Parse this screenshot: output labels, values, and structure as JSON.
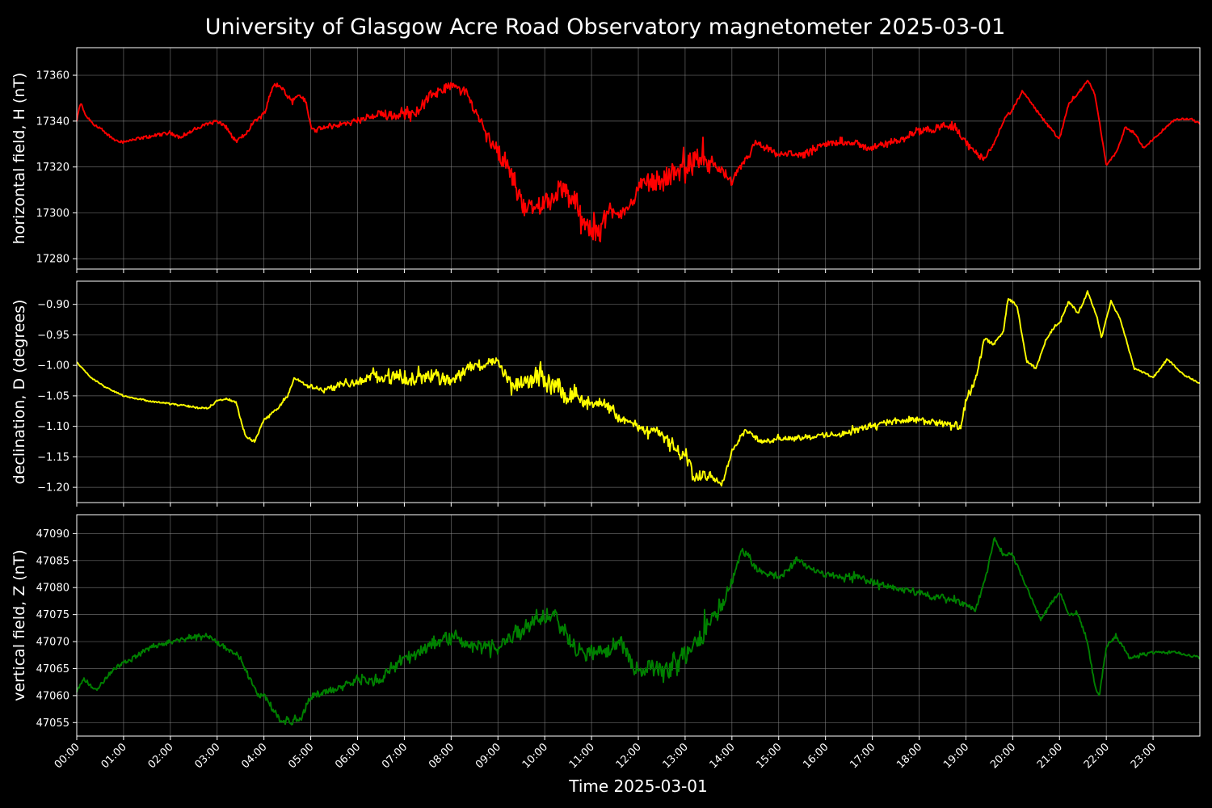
{
  "chart_data": {
    "type": "line",
    "title": "University of Glasgow Acre Road Observatory magnetometer 2025-03-01",
    "xlabel": "Time 2025-03-01",
    "x_ticks": [
      "00:00",
      "01:00",
      "02:00",
      "03:00",
      "04:00",
      "05:00",
      "06:00",
      "07:00",
      "08:00",
      "09:00",
      "10:00",
      "11:00",
      "12:00",
      "13:00",
      "14:00",
      "15:00",
      "16:00",
      "17:00",
      "18:00",
      "19:00",
      "20:00",
      "21:00",
      "22:00",
      "23:00"
    ],
    "xlim_hours": [
      0,
      24
    ],
    "grid": true,
    "panels": [
      {
        "name": "H",
        "ylabel": "horizontal field, H (nT)",
        "color": "#ff0000",
        "ylim": [
          17275.5,
          17372
        ],
        "yticks": [
          17280,
          17300,
          17320,
          17340,
          17360
        ],
        "ytick_labels": [
          "17280",
          "17300",
          "17320",
          "17340",
          "17360"
        ],
        "noise": [
          [
            0,
            0.5
          ],
          [
            6,
            1.0
          ],
          [
            7,
            2.5
          ],
          [
            8.5,
            1.5
          ],
          [
            9.2,
            3.5
          ],
          [
            11,
            4.5
          ],
          [
            12,
            2.5
          ],
          [
            13,
            5.5
          ],
          [
            14,
            1.5
          ],
          [
            15,
            1.2
          ],
          [
            18,
            1.5
          ],
          [
            19,
            2.0
          ],
          [
            19.7,
            0.6
          ],
          [
            24,
            0.4
          ]
        ],
        "series": [
          {
            "name": "H",
            "x": [
              0,
              0.08,
              0.2,
              0.4,
              0.6,
              0.8,
              1.0,
              1.5,
              2.0,
              2.2,
              2.5,
              2.8,
              3.0,
              3.2,
              3.4,
              3.6,
              3.8,
              4.0,
              4.2,
              4.4,
              4.6,
              4.75,
              4.9,
              5.0,
              5.1,
              5.5,
              6.0,
              6.5,
              7.0,
              7.3,
              7.6,
              8.0,
              8.3,
              8.5,
              8.8,
              9.0,
              9.2,
              9.4,
              9.6,
              9.8,
              10.0,
              10.3,
              10.6,
              10.8,
              11.0,
              11.2,
              11.5,
              11.8,
              12.0,
              12.3,
              12.6,
              13.0,
              13.2,
              13.5,
              13.8,
              14.0,
              14.2,
              14.5,
              14.8,
              15.0,
              15.3,
              15.6,
              16.0,
              16.5,
              17.0,
              17.3,
              17.6,
              18.0,
              18.3,
              18.5,
              18.8,
              19.0,
              19.2,
              19.4,
              19.6,
              19.8,
              20.0,
              20.2,
              20.4,
              20.6,
              20.8,
              21.0,
              21.2,
              21.4,
              21.6,
              21.75,
              21.85,
              22.0,
              22.2,
              22.4,
              22.6,
              22.8,
              23.0,
              23.2,
              23.5,
              23.8,
              24.0
            ],
            "y": [
              17340,
              17348,
              17342,
              17338,
              17335,
              17332,
              17331,
              17333,
              17335,
              17333,
              17336,
              17339,
              17340,
              17337,
              17331,
              17334,
              17340,
              17343,
              17356,
              17354,
              17349,
              17352,
              17348,
              17338,
              17336,
              17338,
              17340,
              17343,
              17343,
              17345,
              17352,
              17355,
              17353,
              17345,
              17334,
              17326,
              17320,
              17310,
              17303,
              17300,
              17305,
              17310,
              17306,
              17298,
              17290,
              17295,
              17302,
              17300,
              17312,
              17314,
              17315,
              17320,
              17323,
              17322,
              17318,
              17313,
              17320,
              17330,
              17327,
              17325,
              17326,
              17325,
              17330,
              17331,
              17328,
              17330,
              17332,
              17336,
              17337,
              17338,
              17337,
              17331,
              17326,
              17324,
              17330,
              17340,
              17345,
              17353,
              17348,
              17342,
              17337,
              17332,
              17348,
              17352,
              17358,
              17352,
              17340,
              17321,
              17326,
              17337,
              17335,
              17328,
              17332,
              17336,
              17341,
              17341,
              17339
            ]
          }
        ]
      },
      {
        "name": "D",
        "ylabel": "declination, D (degrees)",
        "color": "#ffff00",
        "ylim": [
          -1.225,
          -0.862
        ],
        "yticks": [
          -1.2,
          -1.15,
          -1.1,
          -1.05,
          -1.0,
          -0.95,
          -0.9
        ],
        "ytick_labels": [
          "−1.20",
          "−1.15",
          "−1.10",
          "−1.05",
          "−1.00",
          "−0.95",
          "−0.90"
        ],
        "noise": [
          [
            0,
            0.0006
          ],
          [
            4.5,
            0.002
          ],
          [
            6,
            0.006
          ],
          [
            7,
            0.012
          ],
          [
            9,
            0.006
          ],
          [
            9.8,
            0.016
          ],
          [
            11.3,
            0.008
          ],
          [
            12,
            0.006
          ],
          [
            13,
            0.012
          ],
          [
            14,
            0.003
          ],
          [
            17,
            0.004
          ],
          [
            19,
            0.006
          ],
          [
            19.6,
            0.002
          ],
          [
            24,
            0.001
          ]
        ],
        "series": [
          {
            "name": "D",
            "x": [
              0,
              0.3,
              0.6,
              1.0,
              1.5,
              2.0,
              2.3,
              2.6,
              2.8,
              3.0,
              3.2,
              3.4,
              3.6,
              3.8,
              4.0,
              4.3,
              4.5,
              4.65,
              4.8,
              5.0,
              5.3,
              5.6,
              6.0,
              6.5,
              6.8,
              7.0,
              7.3,
              7.6,
              8.0,
              8.5,
              8.8,
              9.0,
              9.3,
              9.6,
              9.9,
              10.0,
              10.3,
              10.6,
              10.9,
              11.2,
              11.5,
              11.8,
              12.0,
              12.3,
              12.6,
              12.8,
              13.0,
              13.2,
              13.5,
              13.8,
              14.0,
              14.3,
              14.6,
              15.0,
              15.5,
              16.0,
              16.5,
              17.0,
              17.5,
              18.0,
              18.5,
              18.9,
              19.0,
              19.2,
              19.4,
              19.6,
              19.8,
              19.9,
              20.1,
              20.3,
              20.5,
              20.7,
              20.9,
              21.0,
              21.2,
              21.4,
              21.6,
              21.8,
              21.9,
              22.1,
              22.3,
              22.6,
              22.8,
              23.0,
              23.3,
              23.6,
              24.0
            ],
            "y": [
              -0.995,
              -1.02,
              -1.035,
              -1.05,
              -1.058,
              -1.063,
              -1.066,
              -1.07,
              -1.07,
              -1.058,
              -1.055,
              -1.06,
              -1.115,
              -1.125,
              -1.09,
              -1.07,
              -1.05,
              -1.02,
              -1.028,
              -1.035,
              -1.04,
              -1.032,
              -1.028,
              -1.015,
              -1.02,
              -1.025,
              -1.02,
              -1.012,
              -1.025,
              -1.0,
              -0.995,
              -0.995,
              -1.035,
              -1.03,
              -1.015,
              -1.02,
              -1.04,
              -1.045,
              -1.06,
              -1.065,
              -1.08,
              -1.095,
              -1.1,
              -1.105,
              -1.12,
              -1.14,
              -1.15,
              -1.185,
              -1.178,
              -1.19,
              -1.14,
              -1.105,
              -1.125,
              -1.12,
              -1.118,
              -1.115,
              -1.11,
              -1.098,
              -1.09,
              -1.09,
              -1.095,
              -1.102,
              -1.06,
              -1.025,
              -0.955,
              -0.965,
              -0.945,
              -0.89,
              -0.905,
              -0.995,
              -1.005,
              -0.96,
              -0.935,
              -0.93,
              -0.895,
              -0.915,
              -0.88,
              -0.92,
              -0.955,
              -0.895,
              -0.925,
              -1.005,
              -1.012,
              -1.02,
              -0.99,
              -1.012,
              -1.03
            ]
          }
        ]
      },
      {
        "name": "Z",
        "ylabel": "vertical field, Z (nT)",
        "color": "#008000",
        "ylim": [
          47052.5,
          47093.5
        ],
        "yticks": [
          47055,
          47060,
          47065,
          47070,
          47075,
          47080,
          47085,
          47090
        ],
        "ytick_labels": [
          "47055",
          "47060",
          "47065",
          "47070",
          "47075",
          "47080",
          "47085",
          "47090"
        ],
        "noise": [
          [
            0,
            0.3
          ],
          [
            6,
            0.6
          ],
          [
            7,
            1.0
          ],
          [
            9.5,
            1.4
          ],
          [
            10.5,
            1.2
          ],
          [
            12,
            1.2
          ],
          [
            13,
            2.2
          ],
          [
            14,
            0.6
          ],
          [
            16,
            0.5
          ],
          [
            19,
            0.5
          ],
          [
            20,
            0.3
          ],
          [
            24,
            0.2
          ]
        ],
        "series": [
          {
            "name": "Z",
            "x": [
              0,
              0.15,
              0.4,
              0.8,
              1.2,
              1.6,
              2.0,
              2.5,
              2.8,
              3.0,
              3.3,
              3.5,
              3.7,
              3.9,
              4.0,
              4.3,
              4.6,
              4.8,
              5.0,
              5.5,
              6.0,
              6.5,
              7.0,
              7.5,
              8.0,
              8.5,
              9.0,
              9.3,
              9.6,
              10.0,
              10.2,
              10.5,
              10.8,
              11.0,
              11.3,
              11.6,
              11.8,
              12.0,
              12.3,
              12.6,
              12.9,
              13.2,
              13.5,
              13.8,
              14.0,
              14.2,
              14.4,
              14.6,
              15.0,
              15.4,
              15.8,
              16.2,
              16.6,
              17.0,
              17.5,
              18.0,
              18.5,
              19.0,
              19.2,
              19.4,
              19.6,
              19.8,
              20.0,
              20.2,
              20.4,
              20.6,
              20.8,
              21.0,
              21.2,
              21.4,
              21.6,
              21.75,
              21.85,
              22.0,
              22.2,
              22.5,
              23.0,
              23.5,
              24.0
            ],
            "y": [
              47061,
              47063,
              47061,
              47065,
              47067,
              47069,
              47070,
              47071,
              47071,
              47070,
              47068,
              47067,
              47063,
              47060,
              47060,
              47056,
              47055,
              47056,
              47060,
              47061,
              47063,
              47063,
              47067,
              47069,
              47071,
              47069,
              47069,
              47071,
              47073,
              47075,
              47075,
              47071,
              47068,
              47068,
              47068,
              47070,
              47067,
              47065,
              47065,
              47064,
              47067,
              47070,
              47073,
              47077,
              47081,
              47087,
              47085,
              47083,
              47082,
              47085,
              47083,
              47082,
              47082,
              47081,
              47080,
              47079,
              47078,
              47077,
              47076,
              47081,
              47089,
              47086,
              47086,
              47082,
              47078,
              47074,
              47077,
              47079,
              47075,
              47075,
              47070,
              47062,
              47060,
              47069,
              47071,
              47067,
              47068,
              47068,
              47067
            ]
          }
        ]
      }
    ]
  }
}
